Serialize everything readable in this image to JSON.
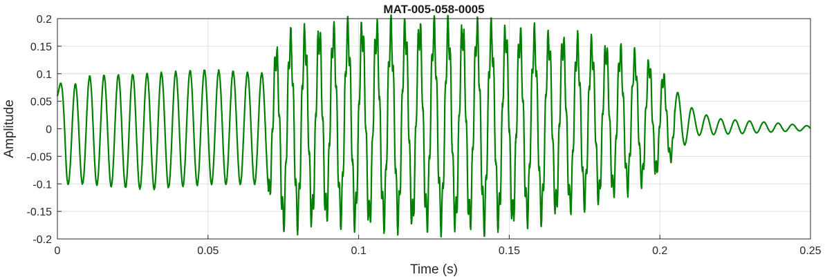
{
  "chart_data": {
    "type": "line",
    "title": "MAT-005-058-0005",
    "xlabel": "Time (s)",
    "ylabel": "Amplitude",
    "xlim": [
      0,
      0.25
    ],
    "ylim": [
      -0.2,
      0.2
    ],
    "xticks": [
      "0",
      "0.05",
      "0.1",
      "0.15",
      "0.2",
      "0.25"
    ],
    "yticks": [
      "0.2",
      "0.15",
      "0.1",
      "0.05",
      "0",
      "-0.05",
      "-0.1",
      "-0.15",
      "-0.2"
    ],
    "grid": true,
    "color": "#008000",
    "series": [
      {
        "frequency_hz": 210,
        "envelope": {
          "t": [
            0,
            0.003,
            0.01,
            0.03,
            0.05,
            0.069,
            0.075,
            0.09,
            0.1,
            0.12,
            0.14,
            0.16,
            0.18,
            0.19,
            0.198,
            0.203,
            0.207,
            0.212,
            0.22,
            0.23,
            0.24,
            0.25
          ],
          "max": [
            0.09,
            0.07,
            0.095,
            0.1,
            0.107,
            0.1,
            0.155,
            0.17,
            0.175,
            0.177,
            0.175,
            0.16,
            0.145,
            0.13,
            0.11,
            0.08,
            0.06,
            0.03,
            0.018,
            0.014,
            0.01,
            0.005
          ],
          "min": [
            0.03,
            -0.1,
            -0.1,
            -0.11,
            -0.1,
            -0.1,
            -0.165,
            -0.15,
            -0.16,
            -0.16,
            -0.165,
            -0.15,
            -0.12,
            -0.1,
            -0.08,
            -0.055,
            -0.035,
            -0.012,
            -0.01,
            -0.008,
            -0.005,
            -0.003
          ]
        }
      }
    ]
  }
}
